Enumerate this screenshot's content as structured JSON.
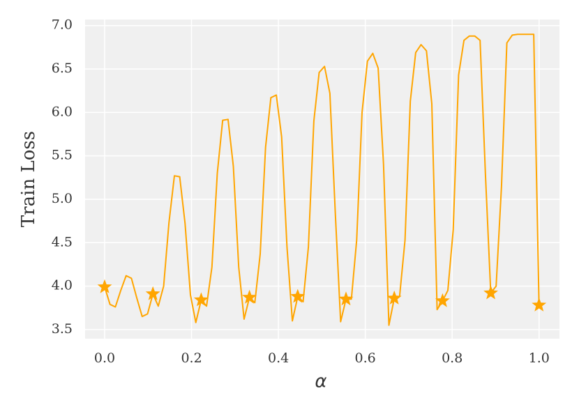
{
  "chart_data": {
    "type": "line",
    "xlabel": "α",
    "ylabel": "Train Loss",
    "xlim": [
      -0.045,
      1.047
    ],
    "ylim": [
      3.395,
      7.07
    ],
    "xticks": [
      {
        "value": 0,
        "label": "0.0"
      },
      0.2,
      0.4,
      0.6,
      0.8,
      {
        "value": 1,
        "label": "1.0"
      }
    ],
    "yticks": [
      3.5,
      {
        "value": 4,
        "label": "4.0"
      },
      4.5,
      {
        "value": 5,
        "label": "5.0"
      },
      5.5,
      {
        "value": 6,
        "label": "6.0"
      },
      6.5,
      {
        "value": 7,
        "label": "7.0"
      }
    ],
    "grid": true,
    "series": [
      {
        "color": "#ffa500",
        "marker": "none",
        "x": [
          0,
          0.0123,
          0.0247,
          0.037,
          0.0494,
          0.0617,
          0.0741,
          0.0864,
          0.0988,
          0.1111,
          0.1235,
          0.1358,
          0.1481,
          0.1605,
          0.1728,
          0.1852,
          0.1975,
          0.2099,
          0.2222,
          0.2346,
          0.2469,
          0.2593,
          0.2716,
          0.284,
          0.2963,
          0.3086,
          0.321,
          0.3333,
          0.3457,
          0.358,
          0.3704,
          0.3827,
          0.3951,
          0.4074,
          0.4198,
          0.4321,
          0.4444,
          0.4568,
          0.4691,
          0.4815,
          0.4938,
          0.5062,
          0.5185,
          0.5309,
          0.5432,
          0.5556,
          0.5679,
          0.5802,
          0.5926,
          0.6049,
          0.6173,
          0.6296,
          0.642,
          0.6543,
          0.6667,
          0.679,
          0.6914,
          0.7037,
          0.716,
          0.7284,
          0.7407,
          0.7531,
          0.7654,
          0.7778,
          0.7901,
          0.8025,
          0.8148,
          0.8272,
          0.8395,
          0.8519,
          0.8642,
          0.8765,
          0.8889,
          0.9012,
          0.9136,
          0.9259,
          0.9383,
          0.9506,
          0.963,
          0.9753,
          0.9877,
          1
        ],
        "values": [
          3.99,
          3.79,
          3.76,
          3.95,
          4.12,
          4.09,
          3.86,
          3.65,
          3.68,
          3.91,
          3.77,
          4.0,
          4.73,
          5.27,
          5.26,
          4.72,
          3.9,
          3.58,
          3.84,
          3.77,
          4.22,
          5.3,
          5.91,
          5.92,
          5.38,
          4.22,
          3.62,
          3.87,
          3.81,
          4.37,
          5.6,
          6.17,
          6.2,
          5.72,
          4.45,
          3.6,
          3.88,
          3.82,
          4.45,
          5.9,
          6.46,
          6.53,
          6.22,
          4.85,
          3.59,
          3.85,
          3.85,
          4.53,
          6.0,
          6.59,
          6.68,
          6.51,
          5.4,
          3.55,
          3.86,
          3.88,
          4.53,
          6.13,
          6.69,
          6.78,
          6.71,
          6.1,
          3.73,
          3.83,
          3.95,
          4.65,
          6.43,
          6.83,
          6.88,
          6.88,
          6.83,
          5.3,
          3.92,
          4.0,
          5.15,
          6.8,
          6.89,
          6.9,
          6.9,
          6.9,
          6.9,
          3.78
        ]
      },
      {
        "color": "#ffa500",
        "marker": "star",
        "x": [
          0,
          0.1111,
          0.2222,
          0.3333,
          0.4444,
          0.5556,
          0.6667,
          0.7778,
          0.8889,
          1
        ],
        "values": [
          3.99,
          3.91,
          3.84,
          3.87,
          3.88,
          3.85,
          3.86,
          3.83,
          3.92,
          3.78
        ]
      }
    ]
  }
}
